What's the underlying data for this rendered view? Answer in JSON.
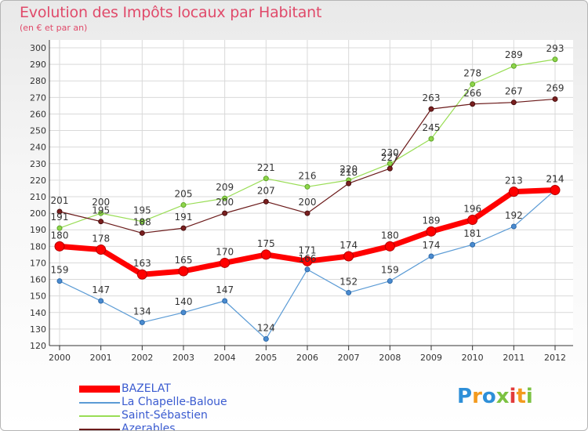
{
  "title": "Evolution des Impôts locaux par Habitant",
  "subtitle": "(en € et par an)",
  "logo_text": "Proxiti",
  "chart_data": {
    "type": "line",
    "x": [
      2000,
      2001,
      2002,
      2003,
      2004,
      2005,
      2006,
      2007,
      2008,
      2009,
      2010,
      2011,
      2012
    ],
    "ylim": [
      120,
      300
    ],
    "yticks": [
      120,
      130,
      140,
      150,
      160,
      170,
      180,
      190,
      200,
      210,
      220,
      230,
      240,
      250,
      260,
      270,
      280,
      290,
      300
    ],
    "grid": true,
    "legend_position": "bottom-left",
    "series": [
      {
        "name": "BAZELAT",
        "color": "#ff0000",
        "values": [
          180,
          178,
          163,
          165,
          170,
          175,
          171,
          174,
          180,
          189,
          196,
          213,
          214
        ]
      },
      {
        "name": "La Chapelle-Baloue",
        "color": "#5b9bd5",
        "values": [
          159,
          147,
          134,
          140,
          147,
          124,
          166,
          152,
          159,
          174,
          181,
          192,
          214
        ]
      },
      {
        "name": "Saint-Sébastien",
        "color": "#99dd55",
        "values": [
          191,
          200,
          195,
          205,
          209,
          221,
          216,
          220,
          230,
          245,
          278,
          289,
          293
        ]
      },
      {
        "name": "Azerables",
        "color": "#6b1a1a",
        "values": [
          201,
          195,
          188,
          191,
          200,
          207,
          200,
          218,
          227,
          263,
          266,
          267,
          269
        ]
      }
    ]
  }
}
